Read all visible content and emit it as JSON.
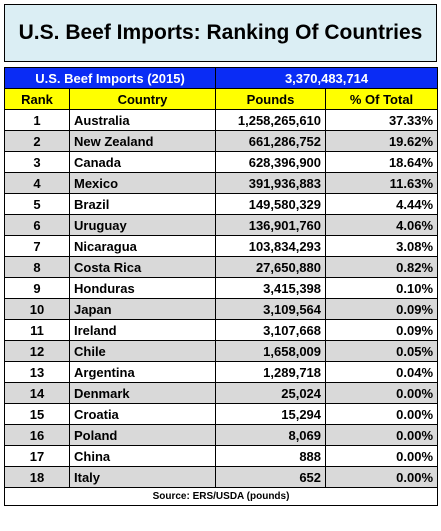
{
  "title": "U.S. Beef Imports: Ranking Of Countries",
  "summary": {
    "label": "U.S. Beef Imports (2015)",
    "value": "3,370,483,714"
  },
  "table": {
    "columns": [
      "Rank",
      "Country",
      "Pounds",
      "% Of Total"
    ],
    "rows": [
      [
        "1",
        "Australia",
        "1,258,265,610",
        "37.33%"
      ],
      [
        "2",
        "New Zealand",
        "661,286,752",
        "19.62%"
      ],
      [
        "3",
        "Canada",
        "628,396,900",
        "18.64%"
      ],
      [
        "4",
        "Mexico",
        "391,936,883",
        "11.63%"
      ],
      [
        "5",
        "Brazil",
        "149,580,329",
        "4.44%"
      ],
      [
        "6",
        "Uruguay",
        "136,901,760",
        "4.06%"
      ],
      [
        "7",
        "Nicaragua",
        "103,834,293",
        "3.08%"
      ],
      [
        "8",
        "Costa Rica",
        "27,650,880",
        "0.82%"
      ],
      [
        "9",
        "Honduras",
        "3,415,398",
        "0.10%"
      ],
      [
        "10",
        "Japan",
        "3,109,564",
        "0.09%"
      ],
      [
        "11",
        "Ireland",
        "3,107,668",
        "0.09%"
      ],
      [
        "12",
        "Chile",
        "1,658,009",
        "0.05%"
      ],
      [
        "13",
        "Argentina",
        "1,289,718",
        "0.04%"
      ],
      [
        "14",
        "Denmark",
        "25,024",
        "0.00%"
      ],
      [
        "15",
        "Croatia",
        "15,294",
        "0.00%"
      ],
      [
        "16",
        "Poland",
        "8,069",
        "0.00%"
      ],
      [
        "17",
        "China",
        "888",
        "0.00%"
      ],
      [
        "18",
        "Italy",
        "652",
        "0.00%"
      ]
    ]
  },
  "source": "Source: ERS/USDA (pounds)"
}
